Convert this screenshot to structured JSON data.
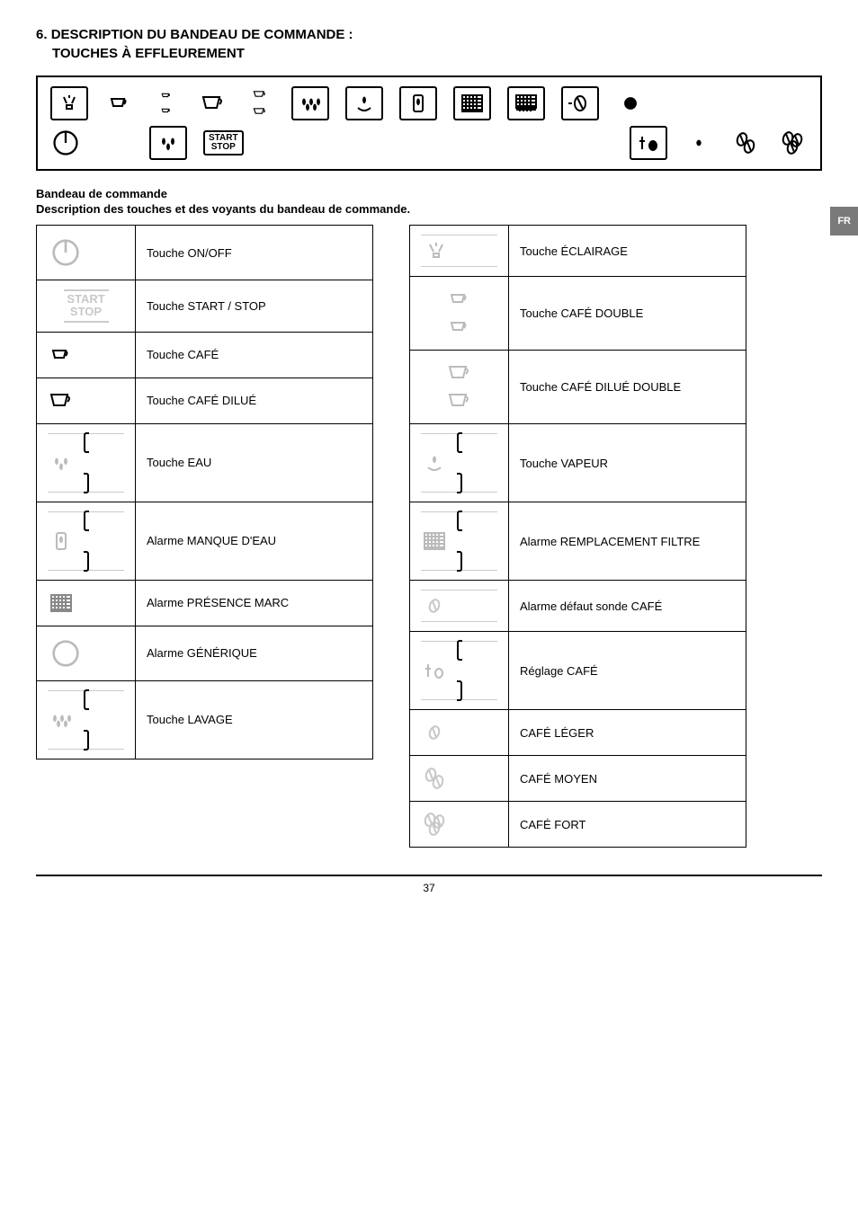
{
  "header": {
    "section_num": "6.",
    "title_main": "DESCRIPTION DU BANDEAU DE COMMANDE :",
    "title_sub": "TOUCHES À EFFLEUREMENT"
  },
  "lang_tab": "FR",
  "sub_heading": "Bandeau de commande",
  "sub_text": "Description des touches et des voyants du bandeau de commande.",
  "left_table": [
    {
      "label": "Touche ON/OFF",
      "icon": "power-switch"
    },
    {
      "label": "Touche START / STOP",
      "icon": "start-stop"
    },
    {
      "label": "Touche CAFÉ",
      "icon": "cup-small"
    },
    {
      "label": "Touche CAFÉ DILUÉ",
      "icon": "cup-large"
    },
    {
      "label": "Touche EAU",
      "icon": "water-drops"
    },
    {
      "label": "Alarme MANQUE D'EAU",
      "icon": "water-tank"
    },
    {
      "label": "Alarme PRÉSENCE MARC",
      "icon": "grid-dark"
    },
    {
      "label": "Alarme GÉNÉRIQUE",
      "icon": "circle-empty"
    },
    {
      "label": "Touche LAVAGE",
      "icon": "wash-drops"
    }
  ],
  "right_table": [
    {
      "label": "Touche ÉCLAIRAGE",
      "icon": "lamp"
    },
    {
      "label": "Touche CAFÉ DOUBLE",
      "icon": "cup-double-small"
    },
    {
      "label": "Touche CAFÉ DILUÉ DOUBLE",
      "icon": "cup-double-large"
    },
    {
      "label": "Touche VAPEUR",
      "icon": "steam"
    },
    {
      "label": "Alarme REMPLACEMENT FILTRE",
      "icon": "filter-grid"
    },
    {
      "label": "Alarme défaut sonde CAFÉ",
      "icon": "bean-one"
    },
    {
      "label": "Réglage CAFÉ",
      "icon": "adjust-bean"
    },
    {
      "label": "CAFÉ LÉGER",
      "icon": "bean-one-g"
    },
    {
      "label": "CAFÉ MOYEN",
      "icon": "bean-two-g"
    },
    {
      "label": "CAFÉ FORT",
      "icon": "bean-three-g"
    }
  ],
  "panel_icons_row1": [
    "lamp-boxed",
    "cup-small",
    "cup-double-small-v",
    "cup-large",
    "cup-double-large-v",
    "wash-boxed",
    "steam-boxed",
    "water-boxed",
    "grid-boxed-dark",
    "filter-boxed",
    "bean-boxed",
    "dot"
  ],
  "panel_icons_row2": [
    "power-circle",
    "spacer-sm",
    "water-drops-boxed",
    "start-stop-panel",
    "spacer",
    "adjust-bean-boxed",
    "bean-small",
    "bean-med",
    "bean-large"
  ],
  "page_number": "37"
}
